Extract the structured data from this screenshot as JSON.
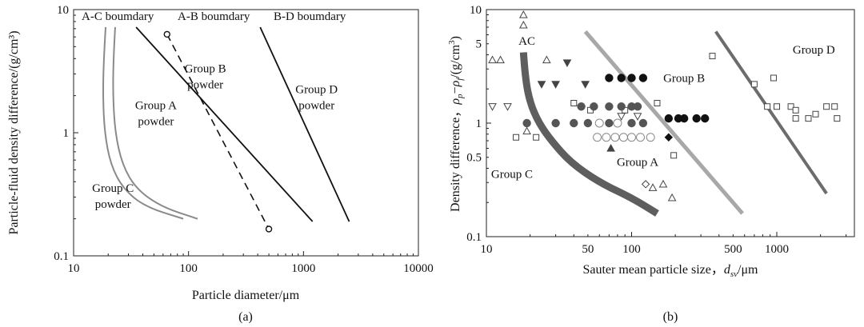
{
  "chart_data": [
    {
      "type": "line",
      "panel_label": "(a)",
      "xlabel": "Particle diameter/μm",
      "ylabel": "Particle-fluid density difference/(g/cm³)",
      "xscale": "log",
      "yscale": "log",
      "xlim": [
        10,
        10000
      ],
      "ylim": [
        0.1,
        10
      ],
      "x_tick_labels": [
        "10",
        "100",
        "1000",
        "10000"
      ],
      "y_tick_labels": [
        "0.1",
        "1",
        "10"
      ],
      "legend_text": [
        "A-C boumdary",
        "A-B boumdary",
        "B-D boumdary"
      ],
      "region_labels": [
        {
          "lines": [
            "Group C",
            "powder"
          ],
          "x": 22,
          "y": 0.33
        },
        {
          "lines": [
            "Group A",
            "powder"
          ],
          "x": 52,
          "y": 1.55
        },
        {
          "lines": [
            "Group B",
            "powder"
          ],
          "x": 140,
          "y": 3.1
        },
        {
          "lines": [
            "Group D",
            "powder"
          ],
          "x": 1300,
          "y": 2.1
        }
      ],
      "series": [
        {
          "id": "ac1",
          "style": "gray",
          "points": [
            [
              19,
              7.2
            ],
            [
              18.3,
              4
            ],
            [
              18,
              2
            ],
            [
              18.6,
              1
            ],
            [
              21,
              0.55
            ],
            [
              27,
              0.35
            ],
            [
              42,
              0.25
            ],
            [
              90,
              0.2
            ]
          ]
        },
        {
          "id": "ac2",
          "style": "gray",
          "points": [
            [
              23,
              7.2
            ],
            [
              22.2,
              4
            ],
            [
              22,
              2
            ],
            [
              23,
              1
            ],
            [
              26.5,
              0.55
            ],
            [
              35,
              0.35
            ],
            [
              58,
              0.25
            ],
            [
              120,
              0.2
            ]
          ]
        },
        {
          "id": "ab",
          "style": "dashed",
          "markers": true,
          "points": [
            [
              65,
              6.3
            ],
            [
              500,
              0.165
            ]
          ]
        },
        {
          "id": "ab2",
          "style": "solid",
          "points": [
            [
              35,
              7.2
            ],
            [
              1200,
              0.19
            ]
          ]
        },
        {
          "id": "bd",
          "style": "solid",
          "points": [
            [
              420,
              7.2
            ],
            [
              2500,
              0.19
            ]
          ]
        }
      ]
    },
    {
      "type": "scatter",
      "panel_label": "(b)",
      "xlabel": "Sauter mean particle size, d_sv/μm",
      "ylabel": "Density difference, ρp−ρf/(g/cm³)",
      "xscale": "log",
      "yscale": "log",
      "xlim": [
        10,
        3000
      ],
      "ylim": [
        0.1,
        10
      ],
      "x_tick_labels": [
        "10",
        "50",
        "100",
        "500",
        "1000"
      ],
      "y_tick_labels": [
        "0.1",
        "0.5",
        "1",
        "5",
        "10"
      ],
      "region_labels": [
        {
          "text": "AC",
          "x": 19,
          "y": 4.9
        },
        {
          "text": "Group B",
          "x": 230,
          "y": 2.3
        },
        {
          "text": "Group D",
          "x": 1800,
          "y": 4.1
        },
        {
          "text": "Group A",
          "x": 110,
          "y": 0.42
        },
        {
          "text": "Group C",
          "x": 15,
          "y": 0.33
        }
      ],
      "boundaries": [
        {
          "id": "ac",
          "style": "thick-dark",
          "points": [
            [
              18,
              4.2
            ],
            [
              18.5,
              2.5
            ],
            [
              20,
              1.5
            ],
            [
              23,
              1
            ],
            [
              28,
              0.7
            ],
            [
              38,
              0.45
            ],
            [
              60,
              0.3
            ],
            [
              100,
              0.22
            ],
            [
              150,
              0.16
            ]
          ]
        },
        {
          "id": "ab",
          "style": "light-gray",
          "points": [
            [
              48,
              6.4
            ],
            [
              580,
              0.16
            ]
          ]
        },
        {
          "id": "bd",
          "style": "dark-gray",
          "points": [
            [
              380,
              6.4
            ],
            [
              2200,
              0.24
            ]
          ]
        }
      ],
      "markers": {
        "open_triangle_up": [
          [
            18,
            9
          ],
          [
            18,
            7.3
          ],
          [
            11,
            3.6
          ],
          [
            12.5,
            3.6
          ],
          [
            26,
            3.6
          ],
          [
            19,
            0.85
          ],
          [
            140,
            0.27
          ],
          [
            165,
            0.29
          ],
          [
            190,
            0.22
          ]
        ],
        "open_triangle_down": [
          [
            11,
            1.4
          ],
          [
            14,
            1.4
          ],
          [
            85,
            1.15
          ],
          [
            110,
            1.15
          ]
        ],
        "filled_triangle_down": [
          [
            24,
            2.2
          ],
          [
            30,
            2.2
          ],
          [
            36,
            3.4
          ],
          [
            48,
            2.2
          ]
        ],
        "filled_triangle_up": [
          [
            72,
            0.6
          ]
        ],
        "open_square": [
          [
            16,
            0.75
          ],
          [
            22,
            0.75
          ],
          [
            40,
            1.5
          ],
          [
            52,
            1.3
          ],
          [
            90,
            1.3
          ],
          [
            150,
            1.5
          ],
          [
            195,
            0.52
          ],
          [
            360,
            3.9
          ],
          [
            700,
            2.2
          ],
          [
            950,
            2.5
          ],
          [
            860,
            1.4
          ],
          [
            1000,
            1.4
          ],
          [
            1250,
            1.4
          ],
          [
            1350,
            1.3
          ],
          [
            1350,
            1.1
          ],
          [
            1650,
            1.1
          ],
          [
            1850,
            1.2
          ],
          [
            2200,
            1.4
          ],
          [
            2500,
            1.4
          ],
          [
            2600,
            1.1
          ]
        ],
        "filled_circle": [
          [
            19,
            1
          ],
          [
            30,
            1
          ],
          [
            40,
            1
          ],
          [
            45,
            1.4
          ],
          [
            50,
            1
          ],
          [
            55,
            1.4
          ],
          [
            70,
            1.4
          ],
          [
            70,
            1
          ],
          [
            85,
            1.4
          ],
          [
            100,
            1.4
          ],
          [
            100,
            1
          ],
          [
            110,
            1.4
          ],
          [
            120,
            1
          ],
          [
            70,
            2.5
          ],
          [
            85,
            2.5
          ],
          [
            100,
            2.5
          ],
          [
            120,
            2.5
          ],
          [
            180,
            1.1
          ],
          [
            210,
            1.1
          ],
          [
            230,
            1.1
          ],
          [
            280,
            1.1
          ],
          [
            320,
            1.1
          ]
        ],
        "open_circle": [
          [
            58,
            0.75
          ],
          [
            67,
            0.75
          ],
          [
            77,
            0.75
          ],
          [
            88,
            0.75
          ],
          [
            100,
            0.75
          ],
          [
            115,
            0.75
          ],
          [
            135,
            0.75
          ],
          [
            60,
            1
          ],
          [
            80,
            1
          ]
        ],
        "open_diamond": [
          [
            125,
            0.29
          ]
        ],
        "filled_diamond": [
          [
            180,
            0.75
          ]
        ]
      }
    }
  ]
}
